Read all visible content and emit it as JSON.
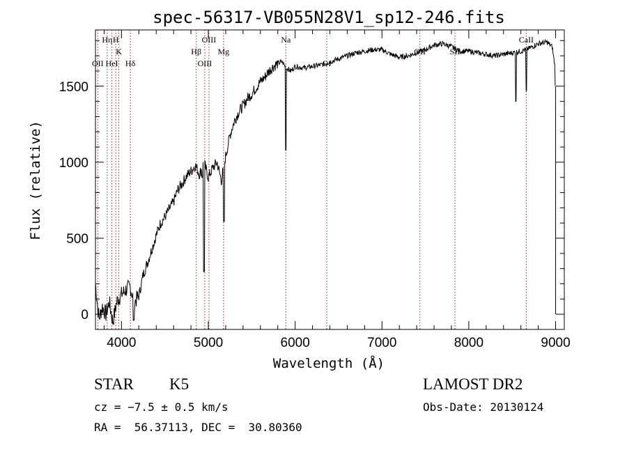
{
  "chart_data": {
    "type": "line",
    "title": "spec-56317-VB055N28V1_sp12-246.fits",
    "xlabel": "Wavelength (Å)",
    "ylabel": "Flux (relative)",
    "xlim": [
      3700,
      9100
    ],
    "ylim": [
      -100,
      1870
    ],
    "xticks": [
      4000,
      5000,
      6000,
      7000,
      8000,
      9000
    ],
    "yticks": [
      0,
      500,
      1000,
      1500
    ],
    "grid": false,
    "spectral_lines": [
      {
        "label": "OII",
        "x": 3727,
        "row": 3
      },
      {
        "label": "Hη",
        "x": 3835,
        "row": 1
      },
      {
        "label": "H",
        "x": 3934,
        "row": 1
      },
      {
        "label": "K",
        "x": 3969,
        "row": 2
      },
      {
        "label": "HeI",
        "x": 3889,
        "row": 3
      },
      {
        "label": "Hδ",
        "x": 4102,
        "row": 3
      },
      {
        "label": "OIII",
        "x": 5007,
        "row": 1
      },
      {
        "label": "Hβ",
        "x": 4861,
        "row": 2
      },
      {
        "label": "Mg",
        "x": 5175,
        "row": 2
      },
      {
        "label": "OIII",
        "x": 4959,
        "row": 3
      },
      {
        "label": "Na",
        "x": 5893,
        "row": 1
      },
      {
        "label": "OI",
        "x": 6364,
        "row": 3
      },
      {
        "label": "OII",
        "x": 7437,
        "row": 2
      },
      {
        "label": "SII",
        "x": 7840,
        "row": 2
      },
      {
        "label": "CaII",
        "x": 8662,
        "row": 1
      }
    ],
    "series": [
      {
        "x": [
          3700,
          3740,
          3780,
          3820,
          3860,
          3900,
          3950,
          4000,
          4050,
          4100,
          4150,
          4200,
          4250,
          4300,
          4350,
          4400,
          4450,
          4500,
          4550,
          4600,
          4650,
          4700,
          4750,
          4800,
          4850,
          4900,
          4950,
          5000,
          5050,
          5100,
          5150,
          5200,
          5250,
          5300,
          5350,
          5400,
          5450,
          5500,
          5550,
          5600,
          5650,
          5700,
          5750,
          5800,
          5850,
          5900,
          5950,
          6000,
          6100,
          6200,
          6300,
          6400,
          6500,
          6600,
          6700,
          6800,
          6900,
          7000,
          7100,
          7200,
          7300,
          7400,
          7500,
          7600,
          7700,
          7800,
          7900,
          8000,
          8100,
          8200,
          8300,
          8400,
          8500,
          8600,
          8700,
          8800,
          8900,
          8960,
          8990,
          9000
        ],
        "y": [
          200,
          -30,
          50,
          0,
          80,
          -50,
          90,
          130,
          160,
          180,
          80,
          120,
          260,
          340,
          430,
          520,
          600,
          640,
          690,
          740,
          820,
          860,
          910,
          940,
          980,
          920,
          1000,
          900,
          960,
          1000,
          880,
          1040,
          1180,
          1270,
          1330,
          1370,
          1420,
          1450,
          1490,
          1530,
          1560,
          1600,
          1630,
          1650,
          1660,
          1620,
          1600,
          1630,
          1620,
          1630,
          1640,
          1660,
          1680,
          1700,
          1720,
          1730,
          1740,
          1740,
          1710,
          1690,
          1700,
          1720,
          1740,
          1770,
          1780,
          1760,
          1730,
          1730,
          1720,
          1710,
          1700,
          1710,
          1720,
          1730,
          1750,
          1780,
          1790,
          1760,
          1640,
          1400
        ]
      }
    ],
    "absorption_features": [
      {
        "x": 4930,
        "y": 900
      },
      {
        "x": 4950,
        "y": 280
      },
      {
        "x": 5180,
        "y": 610
      },
      {
        "x": 5893,
        "y": 1080
      },
      {
        "x": 8542,
        "y": 1400
      },
      {
        "x": 8662,
        "y": 1470
      },
      {
        "x": 4140,
        "y": -40
      }
    ]
  },
  "info": {
    "class": "STAR",
    "subclass": "K5",
    "survey": "LAMOST DR2",
    "cz": "cz = −7.5 ± 0.5 km/s",
    "obs_date": "Obs-Date: 20130124",
    "coords": "RA =  56.37113, DEC =  30.80360"
  }
}
